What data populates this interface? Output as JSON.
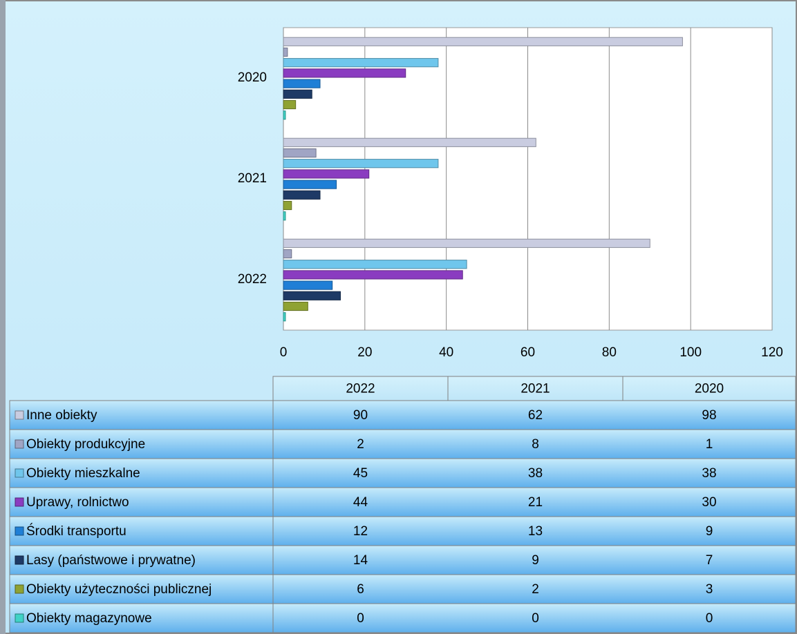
{
  "chart_data": {
    "type": "bar",
    "orientation": "horizontal",
    "categories": [
      "2022",
      "2021",
      "2020"
    ],
    "series": [
      {
        "name": "Inne obiekty",
        "color": "#c9cce0",
        "values": [
          90,
          62,
          98
        ]
      },
      {
        "name": "Obiekty produkcyjne",
        "color": "#a0a5c4",
        "values": [
          2,
          8,
          1
        ]
      },
      {
        "name": "Obiekty mieszkalne",
        "color": "#6fc6ec",
        "values": [
          45,
          38,
          38
        ]
      },
      {
        "name": "Uprawy, rolnictwo",
        "color": "#8a3cc0",
        "values": [
          44,
          21,
          30
        ]
      },
      {
        "name": "Środki transportu",
        "color": "#1f7fd6",
        "values": [
          12,
          13,
          9
        ]
      },
      {
        "name": "Lasy (państwowe i prywatne)",
        "color": "#1e3a66",
        "values": [
          14,
          9,
          7
        ]
      },
      {
        "name": "Obiekty użyteczności publicznej",
        "color": "#8fa233",
        "values": [
          6,
          2,
          3
        ]
      },
      {
        "name": "Obiekty magazynowe",
        "color": "#3fd3c6",
        "values": [
          0,
          0,
          0
        ]
      }
    ],
    "xlim": [
      0,
      120
    ],
    "xticks": [
      0,
      20,
      40,
      60,
      80,
      100,
      120
    ],
    "grid": true
  }
}
